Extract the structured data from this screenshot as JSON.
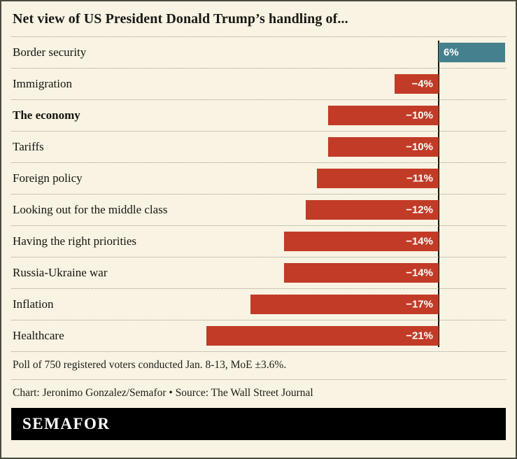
{
  "title": "Net view of US President Donald Trump’s handling of...",
  "chart_data": {
    "type": "bar",
    "orientation": "horizontal",
    "title": "Net view of US President Donald Trump’s handling of...",
    "categories": [
      "Border security",
      "Immigration",
      "The economy",
      "Tariffs",
      "Foreign policy",
      "Looking out for the middle class",
      "Having the right priorities",
      "Russia-Ukraine war",
      "Inflation",
      "Healthcare"
    ],
    "values": [
      6,
      -4,
      -10,
      -10,
      -11,
      -12,
      -14,
      -14,
      -17,
      -21
    ],
    "display": [
      "6%",
      "−4%",
      "−10%",
      "−10%",
      "−11%",
      "−12%",
      "−14%",
      "−14%",
      "−17%",
      "−21%"
    ],
    "bold_category_index": 2,
    "xlim": [
      -25,
      7
    ],
    "zero_axis": true,
    "grid": false,
    "legend": "none"
  },
  "colors": {
    "negative": "#c13b27",
    "positive": "#45808e",
    "background": "#f8f3e2",
    "logo_bar": "#000000"
  },
  "footer": {
    "note": "Poll of 750 registered voters conducted Jan. 8-13, MoE ±3.6%.",
    "credit": "Chart: Jeronimo Gonzalez/Semafor • Source: The Wall Street Journal"
  },
  "logo": "SEMAFOR"
}
